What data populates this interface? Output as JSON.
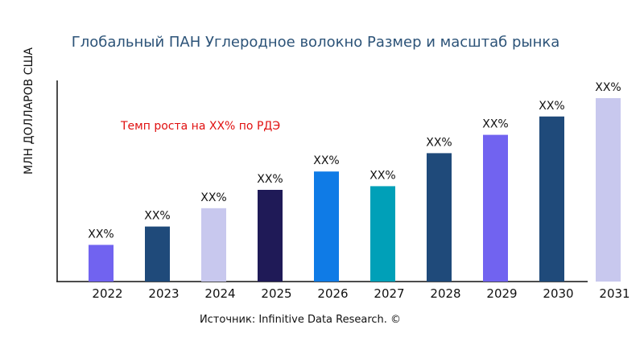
{
  "chart_data": {
    "type": "bar",
    "title": "Глобальный ПАН Углеродное волокно Размер и масштаб рынка",
    "ylabel": "МЛН ДОЛЛАРОВ США",
    "xlabel": "",
    "annotation": "Темп роста на XX% по РДЭ",
    "source": "Источник: Infinitive Data Research. ©",
    "categories": [
      "2022",
      "2023",
      "2024",
      "2025",
      "2026",
      "2027",
      "2028",
      "2029",
      "2030",
      "2031"
    ],
    "values": [
      0.2,
      0.3,
      0.4,
      0.5,
      0.6,
      0.52,
      0.7,
      0.8,
      0.9,
      1.0
    ],
    "data_labels": [
      "XX%",
      "XX%",
      "XX%",
      "XX%",
      "XX%",
      "XX%",
      "XX%",
      "XX%",
      "XX%",
      "XX%"
    ],
    "colors": [
      "#7163f0",
      "#1f4a7a",
      "#c8c8ee",
      "#1f1a57",
      "#0f7be6",
      "#00a0b8",
      "#1f4a7a",
      "#7163f0",
      "#1f4a7a",
      "#c8c8ee"
    ],
    "ylim": [
      0,
      1.0
    ],
    "grid": false,
    "legend": "none"
  }
}
